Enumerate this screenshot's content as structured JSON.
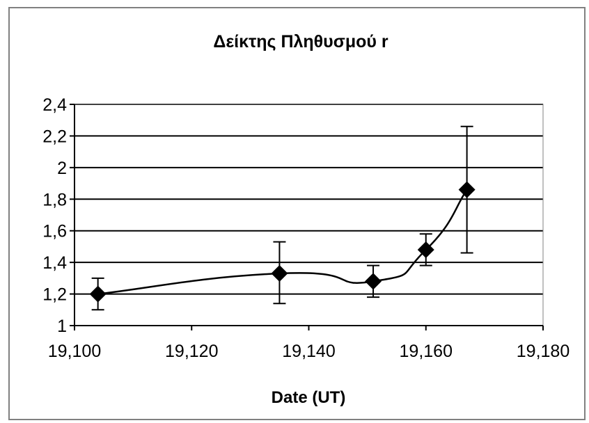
{
  "chart_data": {
    "type": "line",
    "title": "Δείκτης Πληθυσμού r",
    "xlabel": "Date (UT)",
    "ylabel": "",
    "xlim": [
      19100,
      19180
    ],
    "ylim": [
      1,
      2.4
    ],
    "x_ticks": [
      "19,100",
      "19,120",
      "19,140",
      "19,160",
      "19,180"
    ],
    "y_ticks": [
      "1",
      "1,2",
      "1,4",
      "1,6",
      "1,8",
      "2",
      "2,2",
      "2,4"
    ],
    "grid": "horizontal",
    "legend": "none",
    "series": [
      {
        "x": [
          19104,
          19135,
          19151,
          19160,
          19167
        ],
        "y": [
          1.2,
          1.33,
          1.28,
          1.48,
          1.86
        ],
        "err_low": [
          1.1,
          1.14,
          1.18,
          1.38,
          1.46
        ],
        "err_high": [
          1.3,
          1.53,
          1.38,
          1.58,
          2.26
        ],
        "marker": "diamond",
        "color": "#000000"
      }
    ]
  }
}
